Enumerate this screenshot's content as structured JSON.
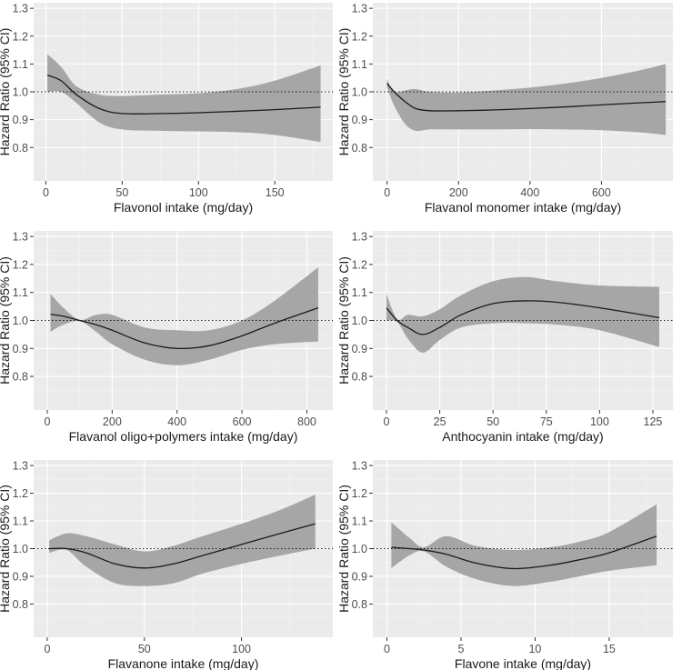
{
  "colors": {
    "panel_bg": "#ebebeb",
    "grid_major": "#ffffff",
    "grid_minor": "#f4f4f4",
    "band": "#a6a6a6",
    "line": "#1a1a1a",
    "reference": "#1a1a1a"
  },
  "chart_data": [
    {
      "type": "line",
      "xlabel": "Flavonol intake (mg/day)",
      "ylabel": "Hazard Ratio (95% CI)",
      "xlim": [
        -8,
        188
      ],
      "ylim": [
        0.68,
        1.32
      ],
      "xticks": [
        0,
        50,
        100,
        150
      ],
      "yticks": [
        0.8,
        0.9,
        1.0,
        1.1,
        1.2,
        1.3
      ],
      "reference_line": 1.0,
      "series": [
        {
          "name": "Hazard Ratio",
          "x": [
            1,
            10,
            20,
            35,
            50,
            75,
            100,
            125,
            150,
            180
          ],
          "y": [
            1.06,
            1.04,
            0.99,
            0.94,
            0.922,
            0.922,
            0.925,
            0.93,
            0.936,
            0.945
          ],
          "lower": [
            1.0,
            1.0,
            0.96,
            0.89,
            0.865,
            0.86,
            0.858,
            0.855,
            0.845,
            0.82
          ],
          "upper": [
            1.135,
            1.09,
            1.02,
            0.99,
            0.985,
            0.99,
            0.995,
            1.01,
            1.04,
            1.095
          ]
        }
      ]
    },
    {
      "type": "line",
      "xlabel": "Flavanol monomer intake (mg/day)",
      "ylabel": "Hazard Ratio (95% CI)",
      "xlim": [
        -40,
        800
      ],
      "ylim": [
        0.68,
        1.32
      ],
      "xticks": [
        0,
        200,
        400,
        600
      ],
      "yticks": [
        0.8,
        0.9,
        1.0,
        1.1,
        1.2,
        1.3
      ],
      "reference_line": 1.0,
      "series": [
        {
          "name": "Hazard Ratio",
          "x": [
            0,
            20,
            50,
            80,
            120,
            200,
            300,
            400,
            500,
            600,
            700,
            780
          ],
          "y": [
            1.03,
            1.0,
            0.965,
            0.94,
            0.932,
            0.932,
            0.935,
            0.94,
            0.946,
            0.953,
            0.96,
            0.965
          ],
          "lower": [
            1.015,
            0.95,
            0.885,
            0.86,
            0.865,
            0.865,
            0.865,
            0.866,
            0.865,
            0.862,
            0.855,
            0.845
          ],
          "upper": [
            1.045,
            1.0,
            1.005,
            1.01,
            1.0,
            0.998,
            1.005,
            1.015,
            1.03,
            1.05,
            1.075,
            1.1
          ]
        }
      ]
    },
    {
      "type": "line",
      "xlabel": "Flavanol oligo+polymers intake (mg/day)",
      "ylabel": "Hazard Ratio (95% CI)",
      "xlim": [
        -42,
        880
      ],
      "ylim": [
        0.68,
        1.32
      ],
      "xticks": [
        0,
        200,
        400,
        600,
        800
      ],
      "yticks": [
        0.8,
        0.9,
        1.0,
        1.1,
        1.2,
        1.3
      ],
      "reference_line": 1.0,
      "series": [
        {
          "name": "Hazard Ratio",
          "x": [
            10,
            50,
            100,
            150,
            200,
            300,
            400,
            500,
            600,
            700,
            835
          ],
          "y": [
            1.022,
            1.015,
            1.0,
            0.985,
            0.965,
            0.92,
            0.9,
            0.91,
            0.945,
            0.99,
            1.045
          ],
          "lower": [
            0.96,
            0.985,
            0.998,
            0.96,
            0.915,
            0.86,
            0.84,
            0.86,
            0.895,
            0.915,
            0.925
          ],
          "upper": [
            1.095,
            1.045,
            1.002,
            1.02,
            1.02,
            0.975,
            0.965,
            0.965,
            1.0,
            1.07,
            1.19
          ]
        }
      ]
    },
    {
      "type": "line",
      "xlabel": "Anthocyanin intake (mg/day)",
      "ylabel": "Hazard Ratio (95% CI)",
      "xlim": [
        -6.4,
        134.4
      ],
      "ylim": [
        0.68,
        1.32
      ],
      "xticks": [
        0,
        25,
        50,
        75,
        100,
        125
      ],
      "yticks": [
        0.8,
        0.9,
        1.0,
        1.1,
        1.2,
        1.3
      ],
      "reference_line": 1.0,
      "series": [
        {
          "name": "Hazard Ratio",
          "x": [
            0,
            5,
            10,
            17,
            25,
            35,
            50,
            65,
            80,
            100,
            128
          ],
          "y": [
            1.045,
            1.0,
            0.975,
            0.95,
            0.975,
            1.02,
            1.06,
            1.07,
            1.065,
            1.045,
            1.01
          ],
          "lower": [
            1.0,
            0.995,
            0.935,
            0.885,
            0.93,
            0.975,
            0.99,
            0.99,
            0.985,
            0.965,
            0.905
          ],
          "upper": [
            1.095,
            1.005,
            1.02,
            1.015,
            1.04,
            1.09,
            1.14,
            1.155,
            1.14,
            1.125,
            1.12
          ]
        }
      ]
    },
    {
      "type": "line",
      "xlabel": "Flavanone intake (mg/day)",
      "ylabel": "Hazard Ratio (95% CI)",
      "xlim": [
        -7,
        147
      ],
      "ylim": [
        0.68,
        1.32
      ],
      "xticks": [
        0,
        50,
        100
      ],
      "yticks": [
        0.8,
        0.9,
        1.0,
        1.1,
        1.2,
        1.3
      ],
      "reference_line": 1.0,
      "series": [
        {
          "name": "Hazard Ratio",
          "x": [
            1,
            10,
            20,
            35,
            50,
            65,
            80,
            100,
            120,
            138
          ],
          "y": [
            1.0,
            1.0,
            0.985,
            0.945,
            0.93,
            0.945,
            0.975,
            1.015,
            1.055,
            1.09
          ],
          "lower": [
            0.985,
            0.995,
            0.935,
            0.875,
            0.865,
            0.875,
            0.91,
            0.945,
            0.975,
            1.0
          ],
          "upper": [
            1.03,
            1.055,
            1.045,
            1.015,
            0.99,
            1.01,
            1.045,
            1.09,
            1.14,
            1.195
          ]
        }
      ]
    },
    {
      "type": "line",
      "xlabel": "Flavone intake (mg/day)",
      "ylabel": "Hazard Ratio (95% CI)",
      "xlim": [
        -0.95,
        19.3
      ],
      "ylim": [
        0.68,
        1.32
      ],
      "xticks": [
        0,
        5,
        10,
        15
      ],
      "yticks": [
        0.8,
        0.9,
        1.0,
        1.1,
        1.2,
        1.3
      ],
      "reference_line": 1.0,
      "series": [
        {
          "name": "Hazard Ratio",
          "x": [
            0.3,
            1.5,
            2.5,
            4,
            6,
            8.5,
            11,
            13,
            15,
            18.2
          ],
          "y": [
            1.005,
            1.0,
            0.995,
            0.98,
            0.948,
            0.928,
            0.94,
            0.96,
            0.985,
            1.045
          ],
          "lower": [
            0.93,
            0.975,
            0.99,
            0.935,
            0.89,
            0.865,
            0.88,
            0.9,
            0.92,
            0.94
          ],
          "upper": [
            1.095,
            1.04,
            1.005,
            1.045,
            1.01,
            0.995,
            1.005,
            1.025,
            1.06,
            1.16
          ]
        }
      ]
    }
  ]
}
